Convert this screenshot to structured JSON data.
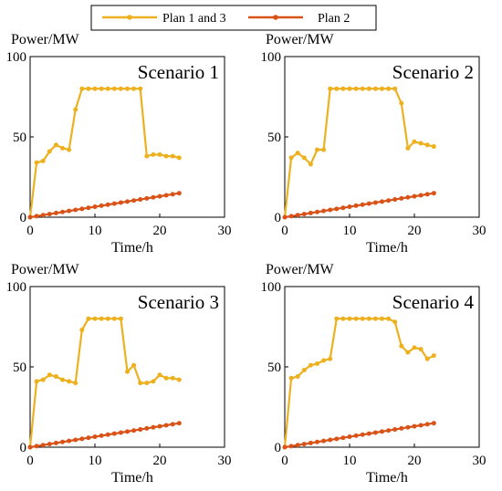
{
  "legend": {
    "items": [
      {
        "label": "Plan 1 and 3",
        "color": "#EDB120"
      },
      {
        "label": "Plan  2",
        "color": "#D95319"
      }
    ]
  },
  "chart_data": [
    {
      "type": "line",
      "title": "Scenario 1",
      "xlabel": "Time/h",
      "ylabel": "Power/MW",
      "xlim": [
        0,
        30
      ],
      "ylim": [
        0,
        100
      ],
      "xticks": [
        0,
        10,
        20,
        30
      ],
      "yticks": [
        0,
        50,
        100
      ],
      "grid": false,
      "series": [
        {
          "name": "Plan 1 and 3",
          "color": "#EDB120",
          "x": [
            0,
            1,
            2,
            3,
            4,
            5,
            6,
            7,
            8,
            9,
            10,
            11,
            12,
            13,
            14,
            15,
            16,
            17,
            18,
            19,
            20,
            21,
            22,
            23
          ],
          "y": [
            0,
            34,
            35,
            41,
            45,
            43,
            42,
            67,
            80,
            80,
            80,
            80,
            80,
            80,
            80,
            80,
            80,
            80,
            38,
            39,
            39,
            38,
            38,
            37
          ]
        },
        {
          "name": "Plan  2",
          "color": "#D95319",
          "x": [
            0,
            1,
            2,
            3,
            4,
            5,
            6,
            7,
            8,
            9,
            10,
            11,
            12,
            13,
            14,
            15,
            16,
            17,
            18,
            19,
            20,
            21,
            22,
            23
          ],
          "y": [
            0,
            0.65,
            1.3,
            1.95,
            2.6,
            3.25,
            3.9,
            4.55,
            5.2,
            5.85,
            6.5,
            7.15,
            7.8,
            8.45,
            9.1,
            9.75,
            10.4,
            11.05,
            11.7,
            12.35,
            13,
            13.65,
            14.3,
            14.95
          ]
        }
      ]
    },
    {
      "type": "line",
      "title": "Scenario 2",
      "xlabel": "Time/h",
      "ylabel": "Power/MW",
      "xlim": [
        0,
        30
      ],
      "ylim": [
        0,
        100
      ],
      "xticks": [
        0,
        10,
        20,
        30
      ],
      "yticks": [
        0,
        50,
        100
      ],
      "grid": false,
      "series": [
        {
          "name": "Plan 1 and 3",
          "color": "#EDB120",
          "x": [
            0,
            1,
            2,
            3,
            4,
            5,
            6,
            7,
            8,
            9,
            10,
            11,
            12,
            13,
            14,
            15,
            16,
            17,
            18,
            19,
            20,
            21,
            22,
            23
          ],
          "y": [
            0,
            37,
            40,
            37,
            33,
            42,
            42,
            80,
            80,
            80,
            80,
            80,
            80,
            80,
            80,
            80,
            80,
            80,
            71,
            43,
            47,
            46,
            45,
            44
          ]
        },
        {
          "name": "Plan  2",
          "color": "#D95319",
          "x": [
            0,
            1,
            2,
            3,
            4,
            5,
            6,
            7,
            8,
            9,
            10,
            11,
            12,
            13,
            14,
            15,
            16,
            17,
            18,
            19,
            20,
            21,
            22,
            23
          ],
          "y": [
            0,
            0.65,
            1.3,
            1.95,
            2.6,
            3.25,
            3.9,
            4.55,
            5.2,
            5.85,
            6.5,
            7.15,
            7.8,
            8.45,
            9.1,
            9.75,
            10.4,
            11.05,
            11.7,
            12.35,
            13,
            13.65,
            14.3,
            14.95
          ]
        }
      ]
    },
    {
      "type": "line",
      "title": "Scenario 3",
      "xlabel": "Time/h",
      "ylabel": "Power/MW",
      "xlim": [
        0,
        30
      ],
      "ylim": [
        0,
        100
      ],
      "xticks": [
        0,
        10,
        20,
        30
      ],
      "yticks": [
        0,
        50,
        100
      ],
      "grid": false,
      "series": [
        {
          "name": "Plan 1 and 3",
          "color": "#EDB120",
          "x": [
            0,
            1,
            2,
            3,
            4,
            5,
            6,
            7,
            8,
            9,
            10,
            11,
            12,
            13,
            14,
            15,
            16,
            17,
            18,
            19,
            20,
            21,
            22,
            23
          ],
          "y": [
            0,
            41,
            42,
            45,
            44,
            42,
            41,
            40,
            73,
            80,
            80,
            80,
            80,
            80,
            80,
            47,
            51,
            40,
            40,
            41,
            45,
            43,
            43,
            42
          ]
        },
        {
          "name": "Plan  2",
          "color": "#D95319",
          "x": [
            0,
            1,
            2,
            3,
            4,
            5,
            6,
            7,
            8,
            9,
            10,
            11,
            12,
            13,
            14,
            15,
            16,
            17,
            18,
            19,
            20,
            21,
            22,
            23
          ],
          "y": [
            0,
            0.65,
            1.3,
            1.95,
            2.6,
            3.25,
            3.9,
            4.55,
            5.2,
            5.85,
            6.5,
            7.15,
            7.8,
            8.45,
            9.1,
            9.75,
            10.4,
            11.05,
            11.7,
            12.35,
            13,
            13.65,
            14.3,
            14.95
          ]
        }
      ]
    },
    {
      "type": "line",
      "title": "Scenario 4",
      "xlabel": "Time/h",
      "ylabel": "Power/MW",
      "xlim": [
        0,
        30
      ],
      "ylim": [
        0,
        100
      ],
      "xticks": [
        0,
        10,
        20,
        30
      ],
      "yticks": [
        0,
        50,
        100
      ],
      "grid": false,
      "series": [
        {
          "name": "Plan 1 and 3",
          "color": "#EDB120",
          "x": [
            0,
            1,
            2,
            3,
            4,
            5,
            6,
            7,
            8,
            9,
            10,
            11,
            12,
            13,
            14,
            15,
            16,
            17,
            18,
            19,
            20,
            21,
            22,
            23
          ],
          "y": [
            0,
            43,
            44,
            48,
            51,
            52,
            54,
            55,
            80,
            80,
            80,
            80,
            80,
            80,
            80,
            80,
            80,
            78,
            63,
            59,
            62,
            61,
            55,
            57
          ]
        },
        {
          "name": "Plan  2",
          "color": "#D95319",
          "x": [
            0,
            1,
            2,
            3,
            4,
            5,
            6,
            7,
            8,
            9,
            10,
            11,
            12,
            13,
            14,
            15,
            16,
            17,
            18,
            19,
            20,
            21,
            22,
            23
          ],
          "y": [
            0,
            0.65,
            1.3,
            1.95,
            2.6,
            3.25,
            3.9,
            4.55,
            5.2,
            5.85,
            6.5,
            7.15,
            7.8,
            8.45,
            9.1,
            9.75,
            10.4,
            11.05,
            11.7,
            12.35,
            13,
            13.65,
            14.3,
            14.95
          ]
        }
      ]
    }
  ]
}
